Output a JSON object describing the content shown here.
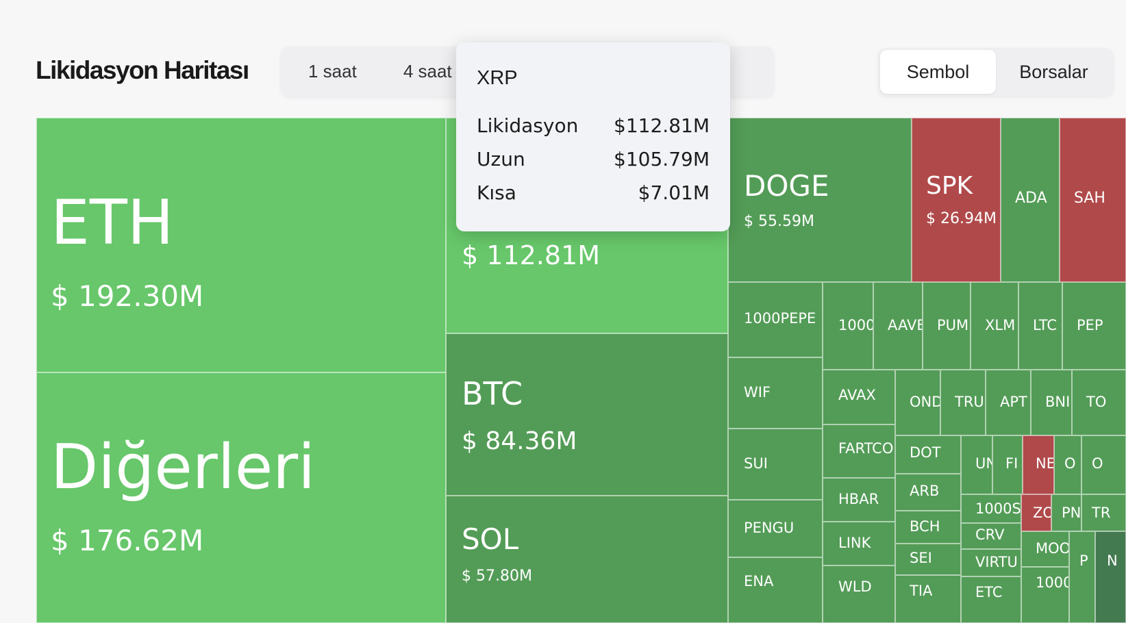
{
  "header": {
    "title": "Likidasyon Haritası",
    "time_tabs": [
      "1 saat",
      "4 saat"
    ],
    "view_toggle": [
      {
        "label": "Sembol",
        "active": true
      },
      {
        "label": "Borsalar",
        "active": false
      }
    ]
  },
  "tooltip": {
    "symbol": "XRP",
    "rows": [
      {
        "label": "Likidasyon",
        "value": "$112.81M"
      },
      {
        "label": "Uzun",
        "value": "$105.79M"
      },
      {
        "label": "Kısa",
        "value": "$7.01M"
      }
    ]
  },
  "colors": {
    "bright_green": "#67c76a",
    "green": "#539c57",
    "red": "#b0494a",
    "dark_green": "#447a50"
  },
  "treemap": [
    {
      "symbol": "ETH",
      "value": "$ 192.30M",
      "color": "bright_green"
    },
    {
      "symbol": "Diğerleri",
      "value": "$ 176.62M",
      "color": "bright_green"
    },
    {
      "symbol": "XRP",
      "value": "$ 112.81M",
      "color": "bright_green"
    },
    {
      "symbol": "BTC",
      "value": "$ 84.36M",
      "color": "green"
    },
    {
      "symbol": "SOL",
      "value": "$ 57.80M",
      "color": "green"
    },
    {
      "symbol": "DOGE",
      "value": "$ 55.59M",
      "color": "green"
    },
    {
      "symbol": "SPK",
      "value": "$ 26.94M",
      "color": "red"
    },
    {
      "symbol": "ADA",
      "value": "",
      "color": "green"
    },
    {
      "symbol": "SAH",
      "value": "",
      "color": "red"
    },
    {
      "symbol": "1000PEPE",
      "value": "",
      "color": "green"
    },
    {
      "symbol": "1000",
      "value": "",
      "color": "green"
    },
    {
      "symbol": "AAVE",
      "value": "",
      "color": "green"
    },
    {
      "symbol": "PUM",
      "value": "",
      "color": "green"
    },
    {
      "symbol": "XLM",
      "value": "",
      "color": "green"
    },
    {
      "symbol": "LTC",
      "value": "",
      "color": "green"
    },
    {
      "symbol": "PEP",
      "value": "",
      "color": "green"
    },
    {
      "symbol": "WIF",
      "value": "",
      "color": "green"
    },
    {
      "symbol": "AVAX",
      "value": "",
      "color": "green"
    },
    {
      "symbol": "OND",
      "value": "",
      "color": "green"
    },
    {
      "symbol": "TRU",
      "value": "",
      "color": "green"
    },
    {
      "symbol": "APT",
      "value": "",
      "color": "green"
    },
    {
      "symbol": "BNI",
      "value": "",
      "color": "green"
    },
    {
      "symbol": "TO",
      "value": "",
      "color": "green"
    },
    {
      "symbol": "SUI",
      "value": "",
      "color": "green"
    },
    {
      "symbol": "FARTCO",
      "value": "",
      "color": "green"
    },
    {
      "symbol": "DOT",
      "value": "",
      "color": "green"
    },
    {
      "symbol": "UN",
      "value": "",
      "color": "green"
    },
    {
      "symbol": "FI",
      "value": "",
      "color": "green"
    },
    {
      "symbol": "NE",
      "value": "",
      "color": "red"
    },
    {
      "symbol": "O",
      "value": "",
      "color": "green"
    },
    {
      "symbol": "O",
      "value": "",
      "color": "green"
    },
    {
      "symbol": "HBAR",
      "value": "",
      "color": "green"
    },
    {
      "symbol": "ARB",
      "value": "",
      "color": "green"
    },
    {
      "symbol": "1000S",
      "value": "",
      "color": "green"
    },
    {
      "symbol": "ZO",
      "value": "",
      "color": "red"
    },
    {
      "symbol": "PN",
      "value": "",
      "color": "green"
    },
    {
      "symbol": "TR",
      "value": "",
      "color": "green"
    },
    {
      "symbol": "PENGU",
      "value": "",
      "color": "green"
    },
    {
      "symbol": "LINK",
      "value": "",
      "color": "green"
    },
    {
      "symbol": "BCH",
      "value": "",
      "color": "green"
    },
    {
      "symbol": "CRV",
      "value": "",
      "color": "green"
    },
    {
      "symbol": "SEI",
      "value": "",
      "color": "green"
    },
    {
      "symbol": "VIRTU",
      "value": "",
      "color": "green"
    },
    {
      "symbol": "MOO",
      "value": "",
      "color": "green"
    },
    {
      "symbol": "P",
      "value": "",
      "color": "green"
    },
    {
      "symbol": "N",
      "value": "",
      "color": "dark_green"
    },
    {
      "symbol": "ENA",
      "value": "",
      "color": "green"
    },
    {
      "symbol": "WLD",
      "value": "",
      "color": "green"
    },
    {
      "symbol": "TIA",
      "value": "",
      "color": "green"
    },
    {
      "symbol": "ETC",
      "value": "",
      "color": "green"
    },
    {
      "symbol": "1000",
      "value": "",
      "color": "green"
    }
  ]
}
